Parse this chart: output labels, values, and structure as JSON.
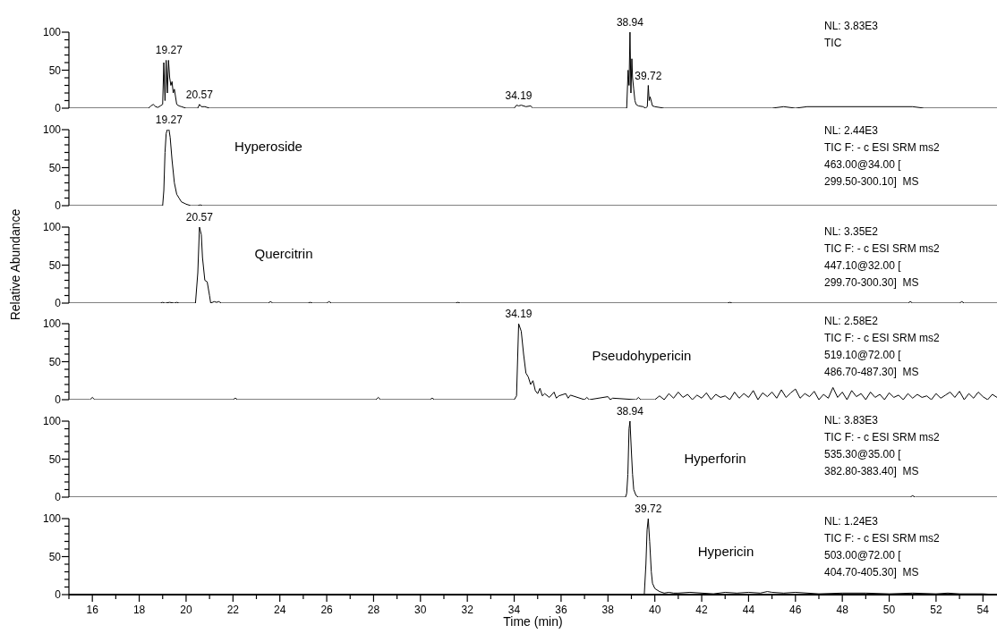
{
  "chart_data": [
    {
      "type": "line",
      "color": "#000000",
      "xlim": [
        15,
        54.6
      ],
      "ylim": [
        0,
        100
      ],
      "yticks": [
        0,
        {
          "value": 10,
          "label": null
        },
        {
          "value": 20,
          "label": null
        },
        {
          "value": 30,
          "label": null
        },
        {
          "value": 40,
          "label": null
        },
        50,
        {
          "value": 60,
          "label": null
        },
        {
          "value": 70,
          "label": null
        },
        {
          "value": 80,
          "label": null
        },
        {
          "value": 90,
          "label": null
        },
        100
      ],
      "tick_labels": "y",
      "x": [
        15,
        18.4,
        18.5,
        18.6,
        18.7,
        18.8,
        18.9,
        19.0,
        19.05,
        19.1,
        19.15,
        19.2,
        19.25,
        19.3,
        19.35,
        19.4,
        19.45,
        19.5,
        19.6,
        19.7,
        19.8,
        20.0,
        20.5,
        20.57,
        20.65,
        20.8,
        21,
        34.0,
        34.1,
        34.19,
        34.3,
        34.5,
        34.7,
        34.8,
        38.8,
        38.86,
        38.9,
        38.94,
        38.98,
        39.02,
        39.05,
        39.1,
        39.15,
        39.2,
        39.3,
        39.5,
        39.6,
        39.68,
        39.72,
        39.76,
        39.8,
        39.9,
        40.0,
        40.2,
        40.4,
        45,
        45.5,
        46,
        46.5,
        51,
        51.5,
        54.6
      ],
      "values": [
        0,
        0,
        3,
        5,
        2,
        1,
        3,
        5,
        60,
        10,
        63,
        20,
        63,
        40,
        30,
        35,
        20,
        25,
        5,
        3,
        2,
        0,
        0,
        5,
        2,
        2,
        0,
        0,
        4,
        3,
        4,
        2,
        3,
        0,
        0,
        50,
        30,
        100,
        20,
        65,
        40,
        25,
        10,
        5,
        3,
        2,
        0,
        2,
        30,
        10,
        15,
        3,
        2,
        1,
        0,
        0,
        2,
        0,
        2,
        2,
        0,
        0
      ],
      "annotations": [
        {
          "text": "19.27",
          "x": 19.27,
          "y": 63
        },
        {
          "text": "20.57",
          "x": 20.57,
          "y": 5
        },
        {
          "text": "34.19",
          "x": 34.19,
          "y": 4
        },
        {
          "text": "38.94",
          "x": 38.94,
          "y": 100
        },
        {
          "text": "39.72",
          "x": 39.72,
          "y": 30
        },
        "NL: 3.83E3",
        "TIC"
      ]
    },
    {
      "type": "line",
      "color": "#000000",
      "title": "Hyperoside",
      "xlim": [
        15,
        54.6
      ],
      "ylim": [
        0,
        100
      ],
      "yticks": [
        0,
        {
          "value": 10,
          "label": null
        },
        {
          "value": 20,
          "label": null
        },
        {
          "value": 30,
          "label": null
        },
        {
          "value": 40,
          "label": null
        },
        50,
        {
          "value": 60,
          "label": null
        },
        {
          "value": 70,
          "label": null
        },
        {
          "value": 80,
          "label": null
        },
        {
          "value": 90,
          "label": null
        },
        100
      ],
      "tick_labels": "y",
      "x": [
        15,
        18.9,
        19.0,
        19.05,
        19.1,
        19.15,
        19.2,
        19.27,
        19.32,
        19.4,
        19.5,
        19.6,
        19.7,
        19.8,
        20.0,
        20.2,
        20.5,
        20.6,
        20.7,
        54.6
      ],
      "values": [
        0,
        0,
        0,
        20,
        70,
        95,
        100,
        100,
        90,
        60,
        30,
        15,
        10,
        5,
        2,
        0,
        0,
        1,
        0,
        0
      ],
      "annotations": [
        {
          "text": "19.27",
          "x": 19.27,
          "y": 100
        },
        "NL: 2.44E3",
        "TIC F: - c ESI SRM ms2",
        "463.00@34.00 [",
        "299.50-300.10]  MS"
      ]
    },
    {
      "type": "line",
      "color": "#000000",
      "title": "Quercitrin",
      "ylabel": "Relative Abundance",
      "xlim": [
        15,
        54.6
      ],
      "ylim": [
        0,
        100
      ],
      "yticks": [
        0,
        {
          "value": 10,
          "label": null
        },
        {
          "value": 20,
          "label": null
        },
        {
          "value": 30,
          "label": null
        },
        {
          "value": 40,
          "label": null
        },
        50,
        {
          "value": 60,
          "label": null
        },
        {
          "value": 70,
          "label": null
        },
        {
          "value": 80,
          "label": null
        },
        {
          "value": 90,
          "label": null
        },
        100
      ],
      "tick_labels": "y",
      "x": [
        15,
        18.9,
        19.0,
        19.1,
        19.3,
        19.5,
        19.6,
        19.7,
        20.4,
        20.5,
        20.57,
        20.65,
        20.7,
        20.8,
        20.9,
        21.0,
        21.05,
        21.2,
        21.3,
        21.4,
        21.5,
        23.5,
        23.6,
        23.7,
        25.2,
        25.3,
        25.4,
        26,
        26.1,
        26.2,
        31.5,
        31.6,
        31.7,
        43.1,
        43.2,
        43.3,
        50.8,
        50.9,
        51.0,
        53.0,
        53.1,
        53.2,
        54.6
      ],
      "values": [
        0,
        0,
        1,
        0,
        1,
        0,
        1,
        0,
        0,
        40,
        100,
        90,
        60,
        30,
        28,
        10,
        0,
        2,
        1,
        2,
        0,
        0,
        2,
        0,
        0,
        1,
        0,
        0,
        2,
        0,
        0,
        1,
        0,
        0,
        1,
        0,
        0,
        2,
        0,
        0,
        2,
        0,
        0
      ],
      "annotations": [
        {
          "text": "20.57",
          "x": 20.57,
          "y": 100
        },
        "NL: 3.35E2",
        "TIC F: - c ESI SRM ms2",
        "447.10@32.00 [",
        "299.70-300.30]  MS"
      ]
    },
    {
      "type": "line",
      "color": "#000000",
      "title": "Pseudohypericin",
      "xlim": [
        15,
        54.6
      ],
      "ylim": [
        0,
        100
      ],
      "yticks": [
        0,
        {
          "value": 10,
          "label": null
        },
        {
          "value": 20,
          "label": null
        },
        {
          "value": 30,
          "label": null
        },
        {
          "value": 40,
          "label": null
        },
        50,
        {
          "value": 60,
          "label": null
        },
        {
          "value": 70,
          "label": null
        },
        {
          "value": 80,
          "label": null
        },
        {
          "value": 90,
          "label": null
        },
        100
      ],
      "tick_labels": "y",
      "x": [
        15,
        15.9,
        16.0,
        16.1,
        22.0,
        22.1,
        22.2,
        28.1,
        28.2,
        28.3,
        30.4,
        30.5,
        30.6,
        34.0,
        34.1,
        34.19,
        34.3,
        34.4,
        34.5,
        34.6,
        34.7,
        34.8,
        34.9,
        35.0,
        35.1,
        35.2,
        35.3,
        35.5,
        35.7,
        35.8,
        35.9,
        36.2,
        36.3,
        36.4,
        37.0,
        37.1,
        37.2,
        38.0,
        38.1,
        38.2,
        39.2,
        39.3,
        39.4,
        40.0,
        40.2,
        40.4,
        40.6,
        40.8,
        41.0,
        41.2,
        41.4,
        41.6,
        41.8,
        42.0,
        42.2,
        42.4,
        42.6,
        42.8,
        43.0,
        43.2,
        43.4,
        43.6,
        43.8,
        44.0,
        44.2,
        44.4,
        44.6,
        44.8,
        45.0,
        45.2,
        45.4,
        45.6,
        45.8,
        46.0,
        46.2,
        46.4,
        46.6,
        46.8,
        47.0,
        47.2,
        47.4,
        47.6,
        47.8,
        48.0,
        48.2,
        48.4,
        48.6,
        48.8,
        49.0,
        49.2,
        49.4,
        49.6,
        49.8,
        50.0,
        50.2,
        50.4,
        50.6,
        50.8,
        51.0,
        51.2,
        51.4,
        51.6,
        51.8,
        52.0,
        52.2,
        52.4,
        52.6,
        52.8,
        53.0,
        53.2,
        53.4,
        53.6,
        53.8,
        54.0,
        54.2,
        54.4,
        54.6
      ],
      "values": [
        0,
        0,
        3,
        0,
        0,
        2,
        0,
        0,
        3,
        0,
        0,
        2,
        0,
        0,
        5,
        100,
        90,
        60,
        35,
        30,
        20,
        25,
        12,
        8,
        15,
        5,
        8,
        3,
        10,
        2,
        5,
        8,
        2,
        6,
        0,
        3,
        0,
        4,
        0,
        2,
        0,
        3,
        0,
        0,
        5,
        0,
        8,
        2,
        10,
        3,
        7,
        0,
        6,
        2,
        9,
        0,
        7,
        3,
        5,
        0,
        10,
        2,
        8,
        3,
        12,
        0,
        9,
        4,
        10,
        2,
        13,
        3,
        9,
        14,
        2,
        8,
        4,
        11,
        0,
        7,
        2,
        16,
        3,
        10,
        0,
        12,
        4,
        8,
        0,
        10,
        3,
        7,
        0,
        9,
        3,
        6,
        0,
        8,
        2,
        7,
        3,
        5,
        0,
        8,
        2,
        6,
        10,
        3,
        11,
        0,
        8,
        2,
        10,
        4,
        0,
        7,
        3
      ],
      "annotations": [
        {
          "text": "34.19",
          "x": 34.19,
          "y": 100
        },
        "NL: 2.58E2",
        "TIC F: - c ESI SRM ms2",
        "519.10@72.00 [",
        "486.70-487.30]  MS"
      ]
    },
    {
      "type": "line",
      "color": "#000000",
      "title": "Hyperforin",
      "xlim": [
        15,
        54.6
      ],
      "ylim": [
        0,
        100
      ],
      "yticks": [
        0,
        {
          "value": 10,
          "label": null
        },
        {
          "value": 20,
          "label": null
        },
        {
          "value": 30,
          "label": null
        },
        {
          "value": 40,
          "label": null
        },
        50,
        {
          "value": 60,
          "label": null
        },
        {
          "value": 70,
          "label": null
        },
        {
          "value": 80,
          "label": null
        },
        {
          "value": 90,
          "label": null
        },
        100
      ],
      "tick_labels": "y",
      "x": [
        15,
        38.75,
        38.8,
        38.85,
        38.9,
        38.94,
        39.0,
        39.05,
        39.1,
        39.2,
        39.3,
        50.9,
        51.0,
        51.1,
        54.6
      ],
      "values": [
        0,
        0,
        5,
        30,
        90,
        100,
        60,
        30,
        10,
        2,
        0,
        0,
        2,
        0,
        0
      ],
      "annotations": [
        {
          "text": "38.94",
          "x": 38.94,
          "y": 100
        },
        "NL: 3.83E3",
        "TIC F: - c ESI SRM ms2",
        "535.30@35.00 [",
        "382.80-383.40]  MS"
      ]
    },
    {
      "type": "line",
      "color": "#000000",
      "title": "Hypericin",
      "xlabel": "Time (min)",
      "xlim": [
        15,
        54.6
      ],
      "ylim": [
        0,
        100
      ],
      "yticks": [
        0,
        {
          "value": 10,
          "label": null
        },
        {
          "value": 20,
          "label": null
        },
        {
          "value": 30,
          "label": null
        },
        {
          "value": 40,
          "label": null
        },
        50,
        {
          "value": 60,
          "label": null
        },
        {
          "value": 70,
          "label": null
        },
        {
          "value": 80,
          "label": null
        },
        {
          "value": 90,
          "label": null
        },
        100
      ],
      "xticks": [
        {
          "value": 15,
          "label": null
        },
        16,
        {
          "value": 17,
          "label": null
        },
        18,
        {
          "value": 19,
          "label": null
        },
        20,
        {
          "value": 21,
          "label": null
        },
        22,
        {
          "value": 23,
          "label": null
        },
        24,
        {
          "value": 25,
          "label": null
        },
        26,
        {
          "value": 27,
          "label": null
        },
        28,
        {
          "value": 29,
          "label": null
        },
        30,
        {
          "value": 31,
          "label": null
        },
        32,
        {
          "value": 33,
          "label": null
        },
        34,
        {
          "value": 35,
          "label": null
        },
        36,
        {
          "value": 37,
          "label": null
        },
        38,
        {
          "value": 39,
          "label": null
        },
        40,
        {
          "value": 41,
          "label": null
        },
        42,
        {
          "value": 43,
          "label": null
        },
        44,
        {
          "value": 45,
          "label": null
        },
        46,
        {
          "value": 47,
          "label": null
        },
        48,
        {
          "value": 49,
          "label": null
        },
        50,
        {
          "value": 51,
          "label": null
        },
        52,
        {
          "value": 53,
          "label": null
        },
        54
      ],
      "x": [
        15,
        39.55,
        39.62,
        39.67,
        39.72,
        39.78,
        39.85,
        39.9,
        40.0,
        40.2,
        40.4,
        40.6,
        40.8,
        41.0,
        41.5,
        42.0,
        42.5,
        43.0,
        43.5,
        44.0,
        44.5,
        44.8,
        45.0,
        45.5,
        46.0,
        47.0,
        48.0,
        49.0,
        50.0,
        51.0,
        52.0,
        52.5,
        53.0,
        54.0,
        54.6
      ],
      "values": [
        0,
        0,
        40,
        85,
        100,
        70,
        30,
        15,
        8,
        4,
        2,
        3,
        2,
        2,
        3,
        2,
        1,
        3,
        2,
        3,
        2,
        4,
        3,
        2,
        3,
        1,
        2,
        2,
        1,
        2,
        1,
        2,
        1,
        1,
        0
      ],
      "annotations": [
        {
          "text": "39.72",
          "x": 39.72,
          "y": 100
        },
        "NL: 1.24E3",
        "TIC F: - c ESI SRM ms2",
        "503.00@72.00 [",
        "404.70-405.30]  MS"
      ]
    }
  ]
}
